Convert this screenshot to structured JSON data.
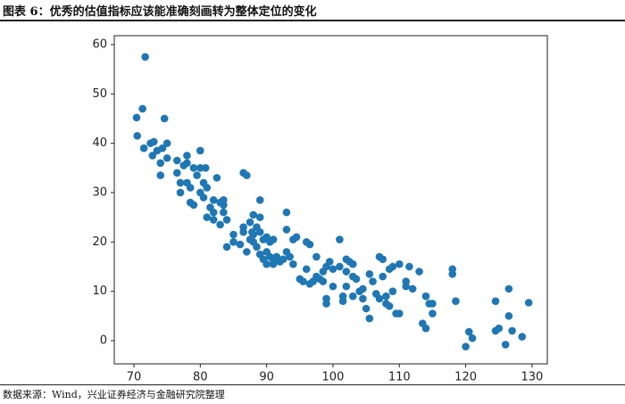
{
  "header": {
    "title": "图表 6：优秀的估值指标应该能准确刻画转为整体定位的变化"
  },
  "footer": {
    "source": "数据来源：Wind，兴业证券经济与金融研究院整理"
  },
  "chart_data": {
    "type": "scatter",
    "color": "#1f77b4",
    "grid": false,
    "xlim": [
      67.04,
      132.3
    ],
    "ylim": [
      -4.7,
      61.8
    ],
    "xticks": [
      70,
      80,
      90,
      100,
      110,
      120,
      130
    ],
    "yticks": [
      0,
      10,
      20,
      30,
      40,
      50,
      60
    ],
    "x": [
      70.4,
      71.3,
      71.7,
      70.5,
      71.5,
      72.5,
      73,
      72.8,
      73.5,
      74,
      74,
      74.6,
      75,
      75,
      74.3,
      76.5,
      76.5,
      77,
      77,
      77.5,
      78,
      78,
      78.5,
      78,
      79,
      78.5,
      79,
      79.5,
      80,
      80,
      80,
      80.5,
      80.5,
      80.8,
      81,
      81,
      81.5,
      82,
      82,
      82,
      82.5,
      83,
      83,
      83.5,
      83.5,
      83.5,
      84,
      84,
      85,
      85,
      86,
      86.5,
      87,
      86.5,
      86.5,
      87,
      87.5,
      87.5,
      88,
      87.8,
      88,
      88,
      88.5,
      88.5,
      89,
      89,
      89,
      89,
      89.5,
      89.5,
      90,
      90,
      90,
      90.5,
      90.5,
      91,
      91,
      91,
      91.5,
      92,
      92.5,
      93,
      93,
      93,
      93.5,
      94,
      94,
      94.5,
      95,
      95.5,
      96,
      96,
      96.5,
      96.5,
      97,
      97.5,
      97.5,
      98,
      98.5,
      98.5,
      99,
      99,
      99,
      99.5,
      100,
      100,
      101,
      101,
      101.5,
      101.5,
      102,
      102,
      102,
      102.5,
      103,
      103,
      103,
      103.5,
      104,
      104.5,
      104.5,
      105,
      105.5,
      105.5,
      106,
      106.5,
      107,
      107,
      107.5,
      107.5,
      108,
      108,
      108.5,
      108.5,
      109,
      109,
      109.5,
      110,
      110,
      111,
      111,
      111.5,
      112,
      113,
      113.5,
      114,
      114,
      114.5,
      115,
      115,
      118,
      118,
      118.5,
      120,
      120.5,
      121,
      124.5,
      124.5,
      125,
      126,
      126.5,
      126.5,
      127,
      128.5,
      129.5
    ],
    "values": [
      45.2,
      47,
      57.5,
      41.5,
      39,
      40,
      40.3,
      37.5,
      38.5,
      36,
      33.5,
      45,
      40,
      37,
      39,
      36.5,
      34,
      32,
      30,
      35.5,
      37.5,
      36,
      31,
      32,
      35,
      28,
      27.5,
      33.5,
      35,
      38.5,
      30,
      32,
      29,
      35,
      31,
      25,
      27,
      28.5,
      26,
      24.5,
      33,
      23.5,
      28,
      26,
      27.5,
      28.5,
      24.5,
      19,
      20,
      21.5,
      19.5,
      34,
      33.5,
      22,
      23,
      18,
      20.5,
      24,
      25.5,
      22,
      20,
      21.5,
      19,
      23,
      17.5,
      25,
      28.5,
      22,
      16.5,
      20.5,
      18,
      15.5,
      21,
      17,
      20,
      16.5,
      15.5,
      20.5,
      17,
      16,
      16.5,
      26,
      22.5,
      18,
      17,
      20.5,
      15.5,
      21,
      12.5,
      12,
      20,
      14.5,
      19.5,
      11.5,
      12,
      17,
      13,
      12.5,
      14,
      12,
      15,
      8.5,
      7.5,
      16,
      14.5,
      11,
      15,
      20.5,
      8,
      9,
      16.5,
      14,
      11,
      16,
      15.5,
      13,
      9,
      12.5,
      10,
      10.5,
      8.5,
      6.5,
      4.5,
      13.5,
      12,
      9.5,
      17,
      8.5,
      13,
      16.5,
      9,
      7.5,
      14.5,
      7,
      15,
      10,
      5.5,
      15.5,
      5.5,
      12,
      11,
      15,
      10.5,
      14,
      3.5,
      2.5,
      9,
      7.5,
      7.5,
      5.5,
      14.5,
      13.5,
      8,
      -1.2,
      1.8,
      0.5,
      8,
      2,
      2.5,
      -0.8,
      5,
      10.5,
      2,
      0.8,
      7.7
    ]
  }
}
